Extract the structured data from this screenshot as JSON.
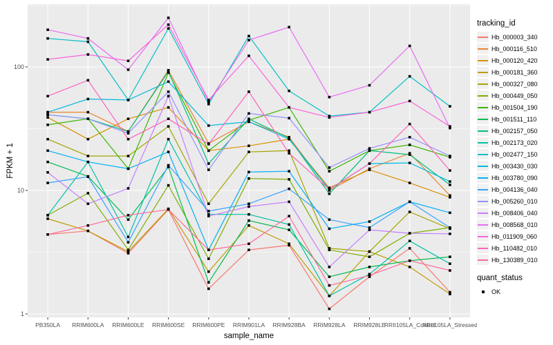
{
  "chart_data": {
    "type": "line",
    "title": "",
    "xlabel": "sample_name",
    "ylabel": "FPKM + 1",
    "yscale": "log10",
    "ylim": [
      0.94,
      322
    ],
    "yticks": [
      1,
      10,
      100
    ],
    "ytick_labels": [
      "1",
      "10",
      "100"
    ],
    "minor_gridlines": [
      3.162,
      31.62,
      316.2
    ],
    "grid": true,
    "panel_bg": "#EBEBEB",
    "gridline_color": "#FFFFFF",
    "tick_label_color": "#4D4D4D",
    "marker": {
      "shape": "square",
      "color": "#000000",
      "size": 3.6
    },
    "categories": [
      "PB350LA",
      "RRIM600LA",
      "RRIM600LE",
      "RRIM600SE",
      "RRIM600PE",
      "RRIM901LA",
      "RRIM928BA",
      "RRIM928LA",
      "RRIM928LE",
      "RRII105LA_Control",
      "RRII105LA_Stressed"
    ],
    "series": [
      {
        "name": "Hb_000003_340",
        "color": "#F8766D",
        "values": [
          4.4,
          4.7,
          3.1,
          7.0,
          1.6,
          3.3,
          3.6,
          1.1,
          2.0,
          3.4,
          1.5
        ]
      },
      {
        "name": "Hb_000116_510",
        "color": "#EA8331",
        "values": [
          43,
          43,
          30,
          94,
          24,
          36,
          27,
          10,
          15,
          20,
          9.1
        ]
      },
      {
        "name": "Hb_000120_420",
        "color": "#D89000",
        "values": [
          39,
          26,
          38,
          47,
          21,
          23,
          26,
          10.5,
          14.7,
          11.5,
          8.8
        ]
      },
      {
        "name": "Hb_000181_360",
        "color": "#C09B00",
        "values": [
          5.9,
          4.7,
          3.2,
          7.1,
          2.2,
          5.2,
          3.7,
          1.4,
          3.2,
          2.4,
          1.45
        ]
      },
      {
        "name": "Hb_000327_080",
        "color": "#A3A500",
        "values": [
          26,
          19,
          19,
          33,
          7.8,
          20.5,
          21,
          3.4,
          3.2,
          6.7,
          4.9
        ]
      },
      {
        "name": "Hb_000449_050",
        "color": "#7CAE00",
        "values": [
          6.3,
          9.5,
          3.3,
          11,
          2.8,
          12.5,
          12.3,
          3.3,
          2.9,
          4.5,
          5.0
        ]
      },
      {
        "name": "Hb_001504_190",
        "color": "#39B600",
        "values": [
          34,
          38,
          15,
          90,
          21,
          37,
          47,
          14.3,
          21,
          23.4,
          18.6
        ]
      },
      {
        "name": "Hb_001511_110",
        "color": "#00BB4E",
        "values": [
          17,
          13,
          5.8,
          15.5,
          1.8,
          5.7,
          4.8,
          2.0,
          2.4,
          2.7,
          2.9
        ]
      },
      {
        "name": "Hb_002157_050",
        "color": "#00BF7D",
        "values": [
          41,
          38,
          30,
          92,
          16.5,
          38,
          26.5,
          9.4,
          21,
          19.5,
          11.1
        ]
      },
      {
        "name": "Hb_002173_020",
        "color": "#00C1A3",
        "values": [
          6.3,
          17,
          4.2,
          26,
          6.4,
          6.4,
          5.3,
          1.4,
          2.1,
          3.9,
          2.55
        ]
      },
      {
        "name": "Hb_002477_150",
        "color": "#00BFC4",
        "values": [
          170,
          160,
          54,
          205,
          50,
          178,
          64,
          40,
          43,
          84,
          48
        ]
      },
      {
        "name": "Hb_003430_030",
        "color": "#00BAE0",
        "values": [
          43,
          55,
          54,
          76,
          33.5,
          36,
          26,
          10.2,
          16.5,
          16.7,
          11.8
        ]
      },
      {
        "name": "Hb_003780_090",
        "color": "#00B0F6",
        "values": [
          21,
          17,
          15,
          20.5,
          3.3,
          14.1,
          14.3,
          4.9,
          5.6,
          8.1,
          6.6
        ]
      },
      {
        "name": "Hb_004136_040",
        "color": "#35A2FF",
        "values": [
          11.5,
          12.9,
          3.8,
          16,
          6.8,
          7.8,
          10.3,
          5.8,
          5.0,
          8.1,
          5.0
        ]
      },
      {
        "name": "Hb_005260_010",
        "color": "#9590FF",
        "values": [
          41,
          38,
          29,
          63,
          14.7,
          42,
          38.5,
          15.3,
          21.9,
          27,
          19
        ]
      },
      {
        "name": "Hb_008406_040",
        "color": "#C77CFF",
        "values": [
          14,
          7.8,
          10.4,
          58,
          6.2,
          7.4,
          8.1,
          2.4,
          4.8,
          4.5,
          4.45
        ]
      },
      {
        "name": "Hb_008568_010",
        "color": "#E76BF3",
        "values": [
          200,
          170,
          95,
          250,
          52,
          165,
          210,
          57,
          71,
          148,
          32
        ]
      },
      {
        "name": "Hb_011909_060",
        "color": "#FA62DB",
        "values": [
          115,
          126,
          112,
          220,
          54,
          123,
          47,
          39,
          43,
          53,
          33
        ]
      },
      {
        "name": "Hb_110482_010",
        "color": "#FF62BC",
        "values": [
          58,
          78,
          26,
          38,
          23.7,
          63,
          20,
          10.2,
          16.5,
          34.5,
          14.5
        ]
      },
      {
        "name": "Hb_130389_010",
        "color": "#FF6A98",
        "values": [
          4.4,
          5.2,
          6.3,
          7.0,
          3.3,
          3.7,
          6.2,
          1.7,
          2.05,
          2.7,
          2.25
        ]
      }
    ],
    "legend": {
      "position": "right",
      "color_title": "tracking_id",
      "shape_title": "quant_status",
      "shape_items": [
        {
          "label": "OK",
          "marker": "black-square"
        }
      ]
    }
  }
}
